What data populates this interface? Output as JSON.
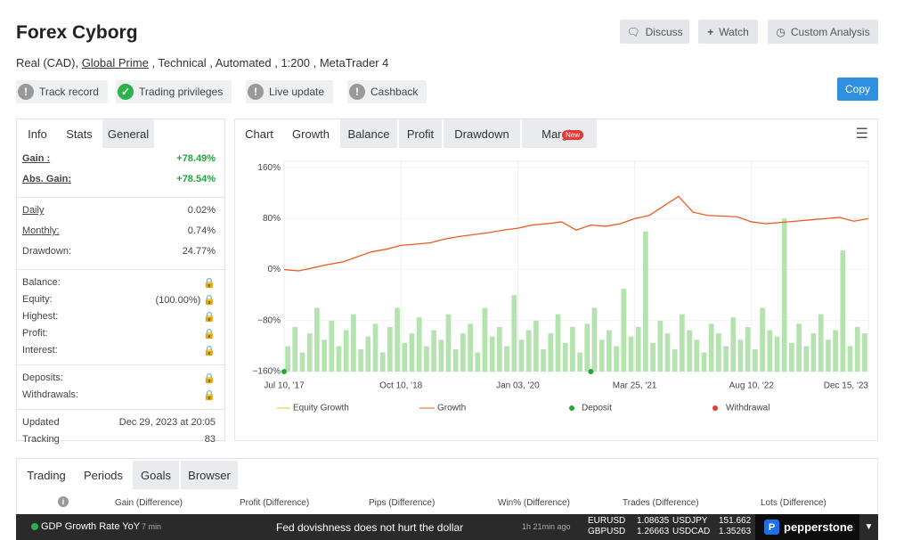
{
  "header": {
    "title": "Forex Cyborg",
    "account": "Real (CAD), ",
    "broker": "Global Prime",
    "details": " , Technical , Automated , 1:200 , MetaTrader 4",
    "buttons": [
      "Discuss",
      "Watch",
      "Custom Analysis"
    ],
    "copy": "Copy"
  },
  "badges": [
    {
      "label": "Track record",
      "verified": false
    },
    {
      "label": "Trading privileges",
      "verified": true
    },
    {
      "label": "Live update",
      "verified": false
    },
    {
      "label": "Cashback",
      "verified": false
    }
  ],
  "stats": {
    "label": "Info",
    "tabs": [
      "Stats",
      "General"
    ],
    "active_tab": 0,
    "groups": [
      [
        {
          "label": "Gain :",
          "value": "+78.49%",
          "positive": true,
          "underlined": true
        },
        {
          "label": "Abs. Gain:",
          "value": "+78.54%",
          "positive": true,
          "underlined": true
        }
      ],
      [
        {
          "label": "Daily",
          "value": "0.02%",
          "underlined": true
        },
        {
          "label": "Monthly:",
          "value": "0.74%",
          "underlined": true
        },
        {
          "label": "Drawdown:",
          "value": "24.77%"
        }
      ],
      [
        {
          "label": "Balance:",
          "locked": true
        },
        {
          "label": "Equity:",
          "value": "(100.00%)",
          "locked": true
        },
        {
          "label": "Highest:",
          "locked": true
        },
        {
          "label": "Profit:",
          "locked": true
        },
        {
          "label": "Interest:",
          "locked": true
        }
      ],
      [
        {
          "label": "Deposits:",
          "locked": true
        },
        {
          "label": "Withdrawals:",
          "locked": true
        }
      ],
      [
        {
          "label": "Updated",
          "value": "Dec 29, 2023 at 20:05"
        },
        {
          "label": "Tracking",
          "value": "83"
        }
      ]
    ]
  },
  "chart_tabs": {
    "label": "Chart",
    "tabs": [
      "Growth",
      "Balance",
      "Profit",
      "Drawdown",
      "Margin"
    ],
    "active_tab": 0,
    "new_badge": "New"
  },
  "chart": {
    "type": "line",
    "ylim": [
      -160,
      170
    ],
    "yticks": [
      {
        "value": 160,
        "label": "160%"
      },
      {
        "value": 80,
        "label": "80%"
      },
      {
        "value": 0,
        "label": "0%"
      },
      {
        "value": -80,
        "label": "−80%"
      },
      {
        "value": -160,
        "label": "−160%"
      }
    ],
    "xticks": [
      "Jul 10, '17",
      "Oct 10, '18",
      "Jan 03, '20",
      "Mar 25, '21",
      "Aug 10, '22",
      "Dec 15, '23"
    ],
    "series": [
      {
        "name": "Equity Growth",
        "color": "#e8c020",
        "values": []
      },
      {
        "name": "Growth",
        "color": "#ee5a24",
        "values": [
          0,
          -2,
          3,
          8,
          12,
          20,
          28,
          32,
          38,
          40,
          42,
          48,
          52,
          55,
          58,
          62,
          65,
          70,
          72,
          75,
          62,
          70,
          68,
          72,
          80,
          85,
          100,
          115,
          90,
          85,
          84,
          83,
          75,
          72,
          74,
          76,
          78,
          80,
          82,
          76,
          80
        ]
      }
    ],
    "bars": {
      "color": "#b5e3b0",
      "values": [
        -120,
        -90,
        -130,
        -100,
        -60,
        -110,
        -80,
        -120,
        -95,
        -70,
        -125,
        -105,
        -85,
        -130,
        -90,
        -60,
        -115,
        -100,
        -75,
        -120,
        -95,
        -110,
        -70,
        -125,
        -100,
        -85,
        -130,
        -60,
        -105,
        -90,
        -120,
        -40,
        -110,
        -95,
        -80,
        -125,
        -100,
        -70,
        -115,
        -90,
        -130,
        -85,
        -60,
        -110,
        -95,
        -120,
        -30,
        -105,
        -90,
        60,
        -115,
        -80,
        -100,
        -125,
        -70,
        -95,
        -110,
        -130,
        -85,
        -100,
        -120,
        -75,
        -110,
        -90,
        -125,
        -60,
        -95,
        -105,
        80,
        -115,
        -85,
        -120,
        -100,
        -70,
        -110,
        -95,
        30,
        -120,
        -90,
        -100
      ]
    },
    "deposits": {
      "name": "Deposit",
      "color": "#22aa33",
      "x": [
        0,
        21
      ],
      "values": [
        -160,
        -160
      ]
    },
    "withdrawals": {
      "name": "Withdrawal",
      "color": "#e53935"
    }
  },
  "bottom": {
    "label": "Trading",
    "tabs": [
      "Periods",
      "Goals",
      "Browser"
    ],
    "active_tab": 0,
    "columns": [
      "Gain (Difference)",
      "Profit (Difference)",
      "Pips (Difference)",
      "Win% (Difference)",
      "Trades (Difference)",
      "Lots (Difference)"
    ]
  },
  "ticker": {
    "event": "GDP Growth Rate YoY",
    "event_age": "7 min",
    "headline": "Fed dovishness does not hurt the dollar",
    "headline_age": "1h 21min ago",
    "quotes": [
      {
        "pair": "EURUSD",
        "price": 1.08635
      },
      {
        "pair": "GBPUSD",
        "price": 1.26663
      },
      {
        "pair": "USDJPY",
        "price": 151.662
      },
      {
        "pair": "USDCAD",
        "price": 1.35263
      }
    ],
    "brand": "pepperstone"
  }
}
